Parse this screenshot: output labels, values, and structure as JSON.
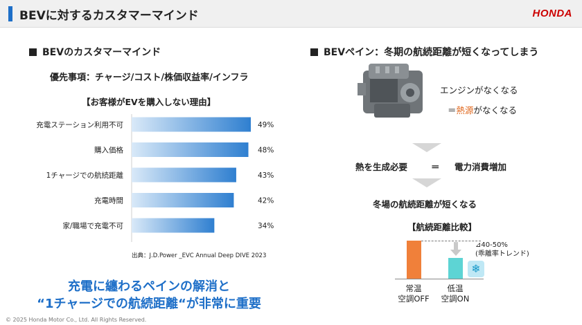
{
  "header": {
    "title": "BEVに対するカスタマーマインド",
    "logo": "HONDA"
  },
  "left": {
    "heading": "BEVのカスタマーマインド",
    "priority": "優先事項：チャージ/コスト/株価収益率/インフラ",
    "reason_title": "【お客様がEVを購入しない理由】",
    "source": "出典：J.D.Power _EVC Annual Deep DIVE 2023",
    "takeaway_line1": "充電に纏わるペインの解消と",
    "takeaway_line2": "“1チャージでの航続距離“が非常に重要"
  },
  "chart_data": [
    {
      "type": "bar",
      "orientation": "horizontal",
      "title": "【お客様がEVを購入しない理由】",
      "categories": [
        "充電ステーション利用不可",
        "購入価格",
        "1チャージでの航続距離",
        "充電時間",
        "家/職場で充電不可"
      ],
      "values": [
        49,
        48,
        43,
        42,
        34
      ],
      "value_labels": [
        "49%",
        "48%",
        "43%",
        "42%",
        "34%"
      ],
      "unit": "%",
      "xlim": [
        0,
        52
      ],
      "grid": false,
      "bar_color_start": "#2f7fd0",
      "bar_color_end": "#d9e9f8"
    },
    {
      "type": "bar",
      "title": "【航続距離比較】",
      "categories": [
        "常温\n空調OFF",
        "低温\n空調ON"
      ],
      "annotation": "⊿40-50%\n(乖離率トレンド)",
      "colors": [
        "#f0803a",
        "#5dd4d4"
      ]
    }
  ],
  "right": {
    "heading": "BEVペイン：冬期の航続距離が短くなってしまう",
    "engine_line1": "エンジンがなくなる",
    "engine_line2_pre": "＝",
    "engine_line2_em": "熱源",
    "engine_line2_post": "がなくなる",
    "equation_left": "熱を生成必要",
    "equation_eq": "＝",
    "equation_right": "電力消費増加",
    "conclusion": "冬場の航続距離が短くなる",
    "comparison_title": "【航続距離比較】",
    "delta_line1": "⊿40-50%",
    "delta_line2": "(乖離率トレンド)",
    "bar1_line1": "常温",
    "bar1_line2": "空調OFF",
    "bar2_line1": "低温",
    "bar2_line2": "空調ON",
    "engine_icon": "engine-image",
    "snow_icon": "snowflake-icon",
    "accent_color": "#e0681e"
  },
  "footer": {
    "copyright": "© 2025 Honda Motor Co., Ltd. All Rights Reserved."
  }
}
